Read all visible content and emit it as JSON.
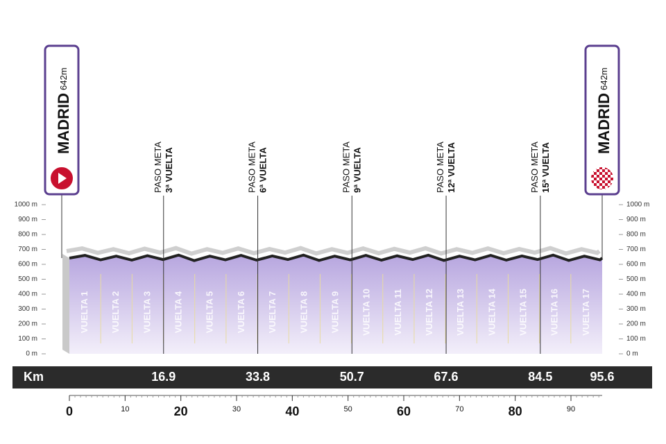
{
  "chart_data": {
    "type": "elevation-profile",
    "xlabel": "Km",
    "xlim": [
      0,
      95.6
    ],
    "ylim": [
      0,
      1000
    ],
    "yticks": [
      {
        "value": 0,
        "label": "0 m"
      },
      {
        "value": 100,
        "label": "100 m"
      },
      {
        "value": 200,
        "label": "200 m"
      },
      {
        "value": 300,
        "label": "300 m"
      },
      {
        "value": 400,
        "label": "400 m"
      },
      {
        "value": 500,
        "label": "500 m"
      },
      {
        "value": 600,
        "label": "600 m"
      },
      {
        "value": 700,
        "label": "700 m"
      },
      {
        "value": 800,
        "label": "800 m"
      },
      {
        "value": 900,
        "label": "900 m"
      },
      {
        "value": 1000,
        "label": "1000 m"
      }
    ],
    "xticks": [
      0,
      10,
      20,
      30,
      40,
      50,
      60,
      70,
      80,
      90
    ],
    "color": "#b7a6df",
    "start": {
      "name": "MADRID",
      "altitude": "642m",
      "km": 0
    },
    "finish": {
      "name": "MADRID",
      "altitude": "642m",
      "km": 95.6
    },
    "markers": [
      {
        "km": 16.9,
        "line1": "PASO META",
        "line2": "3ª VUELTA"
      },
      {
        "km": 33.8,
        "line1": "PASO META",
        "line2": "6ª VUELTA"
      },
      {
        "km": 50.7,
        "line1": "PASO META",
        "line2": "9ª VUELTA"
      },
      {
        "km": 67.6,
        "line1": "PASO META",
        "line2": "12ª VUELTA"
      },
      {
        "km": 84.5,
        "line1": "PASO META",
        "line2": "15ª VUELTA"
      }
    ],
    "laps": [
      "VUELTA 1",
      "VUELTA 2",
      "VUELTA 3",
      "VUELTA 4",
      "VUELTA 5",
      "VUELTA 6",
      "VUELTA 7",
      "VUELTA 8",
      "VUELTA 9",
      "VUELTA 10",
      "VUELTA 11",
      "VUELTA 12",
      "VUELTA 13",
      "VUELTA 14",
      "VUELTA 15",
      "VUELTA 16",
      "VUELTA 17"
    ],
    "profile": {
      "x": [
        0,
        2.8,
        5.6,
        8.4,
        11.2,
        14,
        16.8,
        19.6,
        22.4,
        25.2,
        28,
        30.8,
        33.6,
        36.4,
        39.2,
        42,
        44.8,
        47.6,
        50.4,
        53.2,
        56,
        58.8,
        61.6,
        64.4,
        67.2,
        70,
        72.8,
        75.6,
        78.4,
        81.2,
        84,
        86.8,
        89.6,
        92.4,
        95.2,
        95.6
      ],
      "values": [
        642,
        660,
        630,
        655,
        628,
        658,
        632,
        662,
        625,
        655,
        630,
        660,
        628,
        656,
        632,
        662,
        626,
        655,
        630,
        660,
        628,
        657,
        632,
        661,
        626,
        655,
        630,
        660,
        628,
        656,
        632,
        662,
        626,
        655,
        630,
        642
      ]
    }
  }
}
